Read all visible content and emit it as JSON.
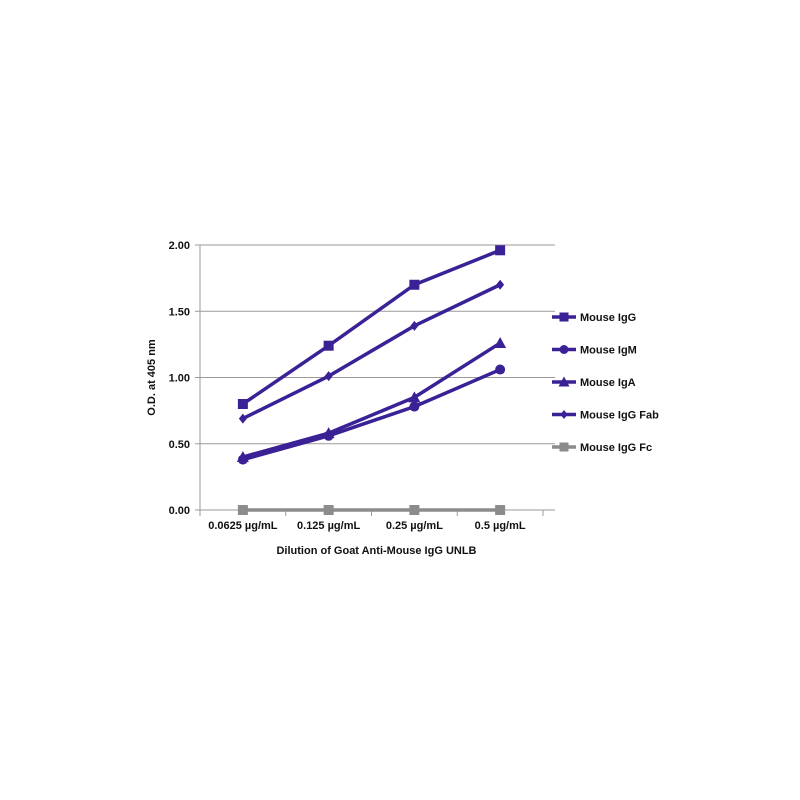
{
  "chart_data": {
    "type": "line",
    "categories": [
      "0.0625 µg/mL",
      "0.125 µg/mL",
      "0.25 µg/mL",
      "0.5 µg/mL"
    ],
    "series": [
      {
        "name": "Mouse IgG",
        "values": [
          0.8,
          1.24,
          1.7,
          1.96
        ],
        "color": "#3b2196",
        "marker": "square"
      },
      {
        "name": "Mouse IgM",
        "values": [
          0.38,
          0.56,
          0.78,
          1.06
        ],
        "color": "#3b2196",
        "marker": "circle"
      },
      {
        "name": "Mouse IgA",
        "values": [
          0.4,
          0.58,
          0.85,
          1.26
        ],
        "color": "#3b2196",
        "marker": "triangle"
      },
      {
        "name": "Mouse IgG Fab",
        "values": [
          0.69,
          1.01,
          1.39,
          1.7
        ],
        "color": "#3b2196",
        "marker": "diamond"
      },
      {
        "name": "Mouse IgG Fc",
        "values": [
          0.0,
          0.0,
          0.0,
          0.0
        ],
        "color": "#8c8c8c",
        "marker": "square"
      }
    ],
    "ylim": [
      0,
      2
    ],
    "yticks": [
      "0.00",
      "0.50",
      "1.00",
      "1.50",
      "2.00"
    ],
    "xlabel": "Dilution of Goat Anti-Mouse IgG UNLB",
    "ylabel": "O.D. at 405 nm",
    "grid": true,
    "legend_position": "right"
  }
}
